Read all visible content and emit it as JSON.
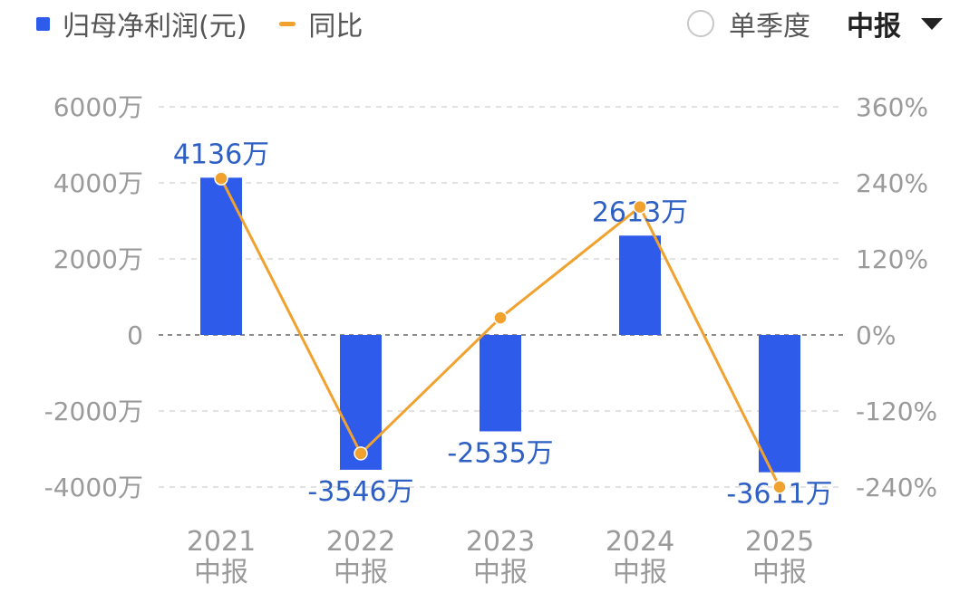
{
  "legend": {
    "bar_label": "归母净利润(元)",
    "line_label": "同比"
  },
  "controls": {
    "single_quarter_label": "单季度",
    "period_selected": "中报"
  },
  "colors": {
    "bar": "#2f5bea",
    "line": "#f0a12e",
    "data_label": "#2d5fc4"
  },
  "chart_data": {
    "type": "bar",
    "categories": [
      [
        "2021",
        "中报"
      ],
      [
        "2022",
        "中报"
      ],
      [
        "2023",
        "中报"
      ],
      [
        "2024",
        "中报"
      ],
      [
        "2025",
        "中报"
      ]
    ],
    "series": [
      {
        "name": "归母净利润(元)",
        "type": "bar",
        "axis": "left",
        "values": [
          4136,
          -3546,
          -2535,
          2613,
          -3611
        ],
        "labels": [
          "4136万",
          "-3546万",
          "-2535万",
          "2613万",
          "-3611万"
        ]
      },
      {
        "name": "同比",
        "type": "line",
        "axis": "right",
        "values": [
          247,
          -187,
          27,
          202,
          -240
        ]
      }
    ],
    "y_left": {
      "ylim": [
        -4000,
        6000
      ],
      "ticks": [
        6000,
        4000,
        2000,
        0,
        -2000,
        -4000
      ],
      "tick_labels": [
        "6000万",
        "4000万",
        "2000万",
        "0",
        "-2000万",
        "-4000万"
      ]
    },
    "y_right": {
      "ylim": [
        -240,
        360
      ],
      "ticks": [
        360,
        240,
        120,
        0,
        -120,
        -240
      ],
      "tick_labels": [
        "360%",
        "240%",
        "120%",
        "0%",
        "-120%",
        "-240%"
      ]
    },
    "grid": true,
    "legend_position": "top-left"
  }
}
